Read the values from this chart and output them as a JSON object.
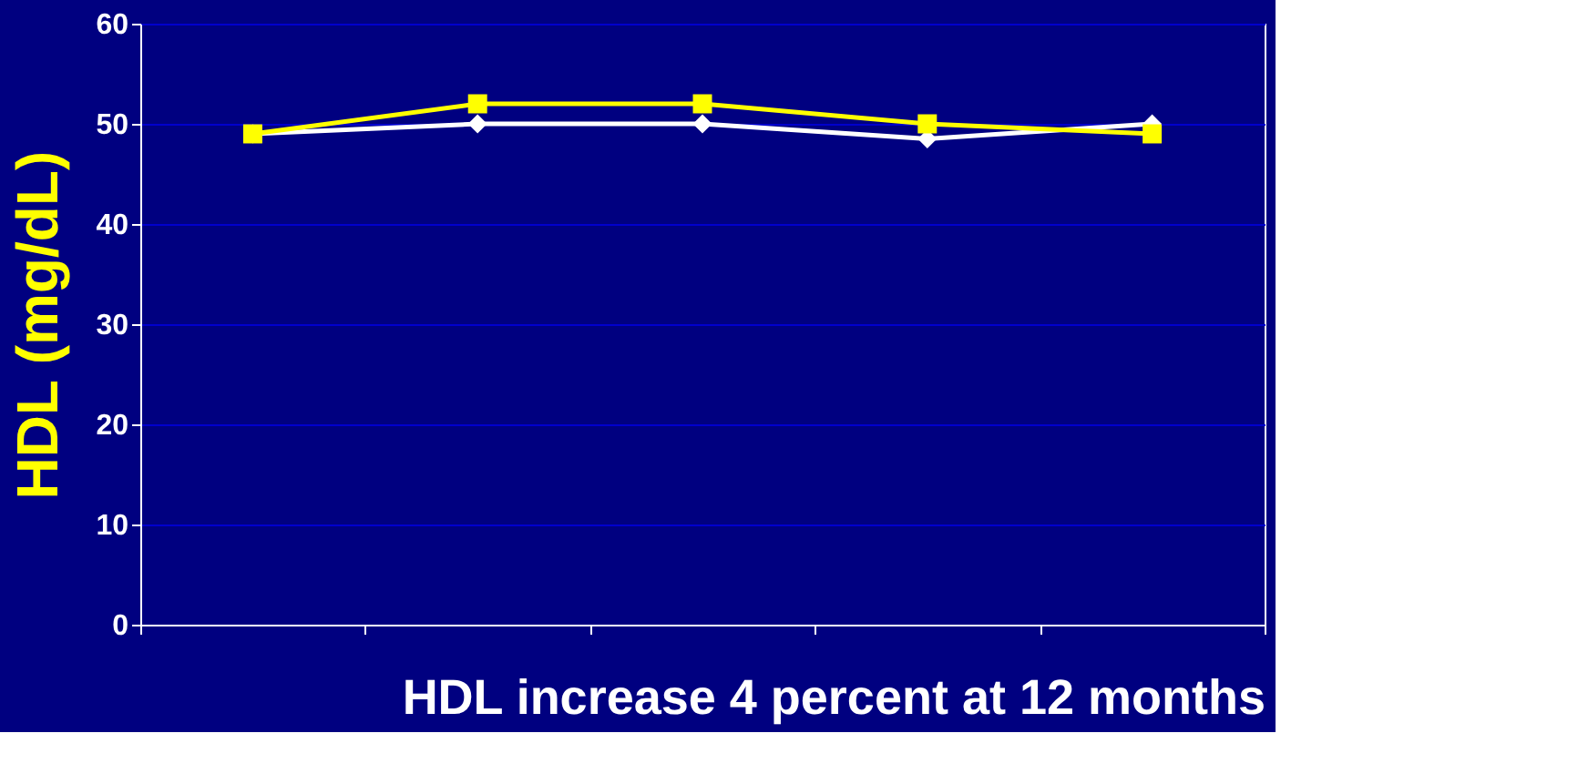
{
  "chart_data": {
    "type": "line",
    "xlabel": "HDL increase 4 percent at 12 months",
    "ylabel": "HDL (mg/dL)",
    "categories": [
      null,
      null,
      null,
      null,
      null
    ],
    "series": [
      {
        "color": "#ffffff",
        "marker": "diamond",
        "values": [
          49,
          50,
          50,
          48.5,
          50
        ]
      },
      {
        "color": "#ffff00",
        "marker": "square",
        "values": [
          49,
          52,
          52,
          50,
          49
        ]
      }
    ],
    "ylim": [
      0,
      60
    ],
    "yticks": [
      0,
      10,
      20,
      30,
      40,
      50,
      60
    ],
    "grid": "y",
    "tick_labels": "y",
    "line_style": "solid"
  }
}
